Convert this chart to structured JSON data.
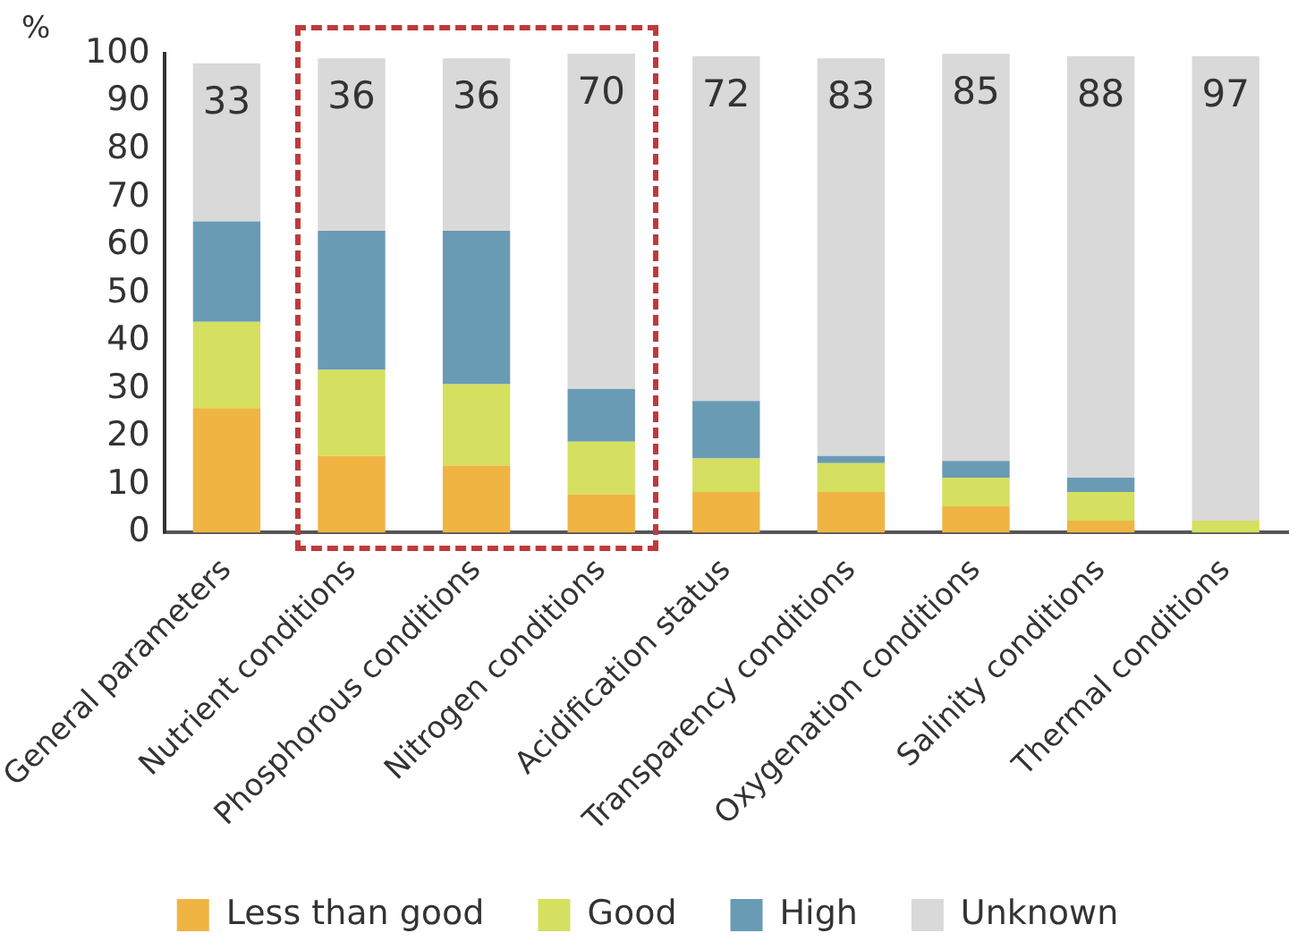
{
  "chart_data": {
    "type": "bar",
    "stacked": true,
    "ylabel": "%",
    "categories": [
      "General parameters",
      "Nutrient conditions",
      "Phosphorous conditions",
      "Nitrogen conditions",
      "Acidification status",
      "Transparency conditions",
      "Oxygenation conditions",
      "Salinity conditions",
      "Thermal conditions"
    ],
    "series": [
      {
        "name": "Less than good",
        "color": "#f0b443",
        "values": [
          26,
          16,
          14,
          8,
          8.5,
          8.5,
          5.5,
          2.5,
          0
        ]
      },
      {
        "name": "Good",
        "color": "#d5df60",
        "values": [
          18,
          18,
          17,
          11,
          7,
          6,
          6,
          6,
          2.5
        ]
      },
      {
        "name": "High",
        "color": "#6a9bb5",
        "values": [
          21,
          29,
          32,
          11,
          12,
          1.5,
          3.5,
          3,
          0
        ]
      },
      {
        "name": "Unknown",
        "color": "#d9d9d9",
        "values": [
          33,
          36,
          36,
          70,
          72,
          83,
          85,
          88,
          97
        ],
        "value_labels": [
          "33",
          "36",
          "36",
          "70",
          "72",
          "83",
          "85",
          "88",
          "97"
        ]
      }
    ],
    "ylim": [
      0,
      100
    ],
    "yticks": [
      0,
      10,
      20,
      30,
      40,
      50,
      60,
      70,
      80,
      90,
      100
    ],
    "grid": false,
    "legend": "bottom"
  }
}
